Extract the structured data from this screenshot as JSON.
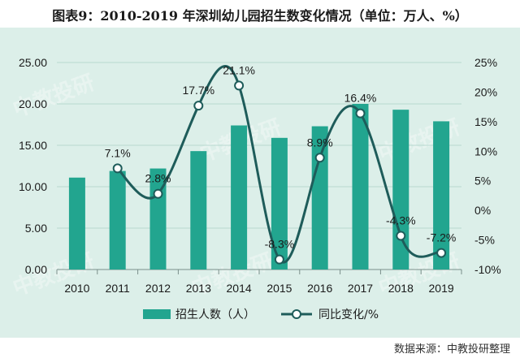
{
  "title": "图表9：2010-2019 年深圳幼儿园招生数变化情况（单位：万人、%）",
  "source": "数据来源：中教投研整理",
  "watermark": "中教投研",
  "colors": {
    "bar": "#22a58f",
    "line": "#1e5c5a",
    "background": "#dcefe9",
    "grid": "#b7d9cf"
  },
  "chart_data": {
    "type": "bar",
    "categories": [
      "2010",
      "2011",
      "2012",
      "2013",
      "2014",
      "2015",
      "2016",
      "2017",
      "2018",
      "2019"
    ],
    "series": [
      {
        "name": "招生人数（人）",
        "type": "bar",
        "axis": "left",
        "values": [
          11.1,
          11.9,
          12.2,
          14.3,
          17.4,
          15.9,
          17.3,
          20.0,
          19.3,
          17.9
        ]
      },
      {
        "name": "同比变化/%",
        "type": "line",
        "axis": "right",
        "values": [
          null,
          7.1,
          2.8,
          17.7,
          21.1,
          -8.3,
          8.9,
          16.4,
          -4.3,
          -7.2
        ],
        "labels": [
          "",
          "7.1%",
          "2.8%",
          "17.7%",
          "21.1%",
          "-8.3%",
          "8.9%",
          "16.4%",
          "-4.3%",
          "-7.2%"
        ]
      }
    ],
    "y_left": {
      "ylim": [
        0,
        25
      ],
      "ticks": [
        "0.00",
        "5.00",
        "10.00",
        "15.00",
        "20.00",
        "25.00"
      ]
    },
    "y_right": {
      "ylim": [
        -10,
        25
      ],
      "ticks": [
        "-10%",
        "-5%",
        "0%",
        "5%",
        "10%",
        "15%",
        "20%",
        "25%"
      ]
    },
    "grid": true,
    "legend_position": "bottom"
  }
}
